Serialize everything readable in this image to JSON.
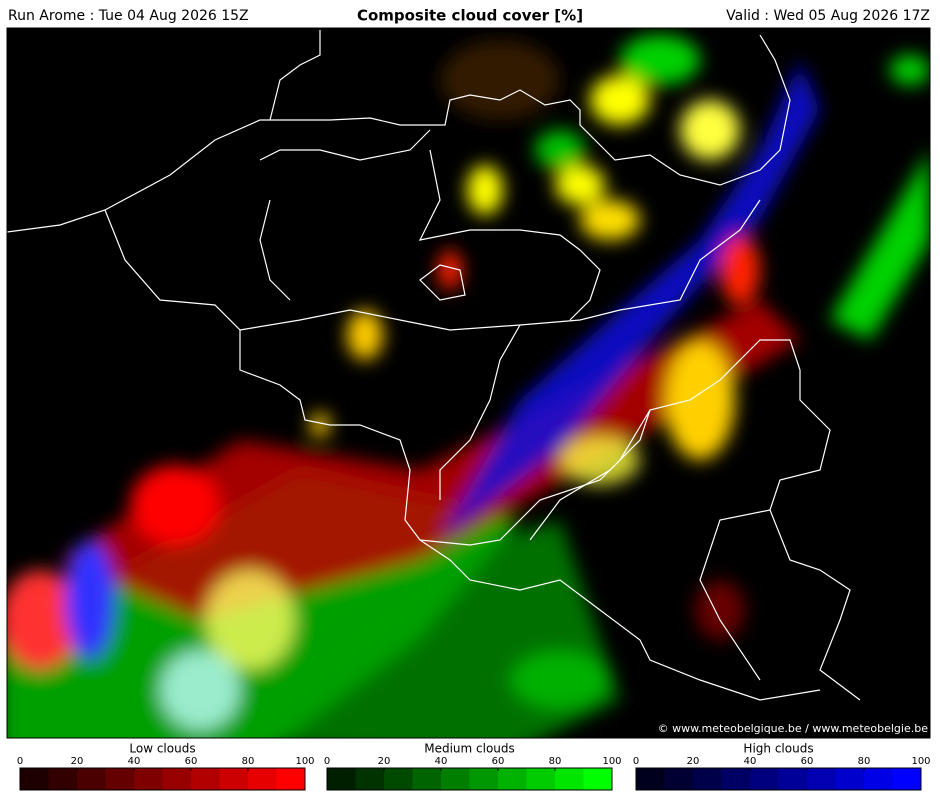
{
  "header": {
    "run": "Run Arome : Tue 04 Aug 2026 15Z",
    "title": "Composite cloud cover [%]",
    "valid": "Valid : Wed 05 Aug 2026 17Z"
  },
  "map": {
    "credit": "© www.meteobelgique.be / www.meteobelgie.be"
  },
  "legends": [
    {
      "title": "Low clouds",
      "range": [
        0,
        100
      ],
      "ticks": [
        0,
        20,
        40,
        60,
        80,
        100
      ],
      "colors": [
        "#1e0000",
        "#330000",
        "#4a0000",
        "#640000",
        "#7e0000",
        "#980000",
        "#b20000",
        "#cc0000",
        "#e60000",
        "#ff0000"
      ]
    },
    {
      "title": "Medium clouds",
      "range": [
        0,
        100
      ],
      "ticks": [
        0,
        20,
        40,
        60,
        80,
        100
      ],
      "colors": [
        "#001e00",
        "#003300",
        "#004a00",
        "#006400",
        "#007e00",
        "#009800",
        "#00b200",
        "#00cc00",
        "#00e600",
        "#00ff00"
      ]
    },
    {
      "title": "High clouds",
      "range": [
        0,
        100
      ],
      "ticks": [
        0,
        20,
        40,
        60,
        80,
        100
      ],
      "colors": [
        "#00001e",
        "#000033",
        "#00004a",
        "#000064",
        "#00007e",
        "#000098",
        "#0000b2",
        "#0000cc",
        "#0000e6",
        "#0000ff"
      ]
    }
  ]
}
